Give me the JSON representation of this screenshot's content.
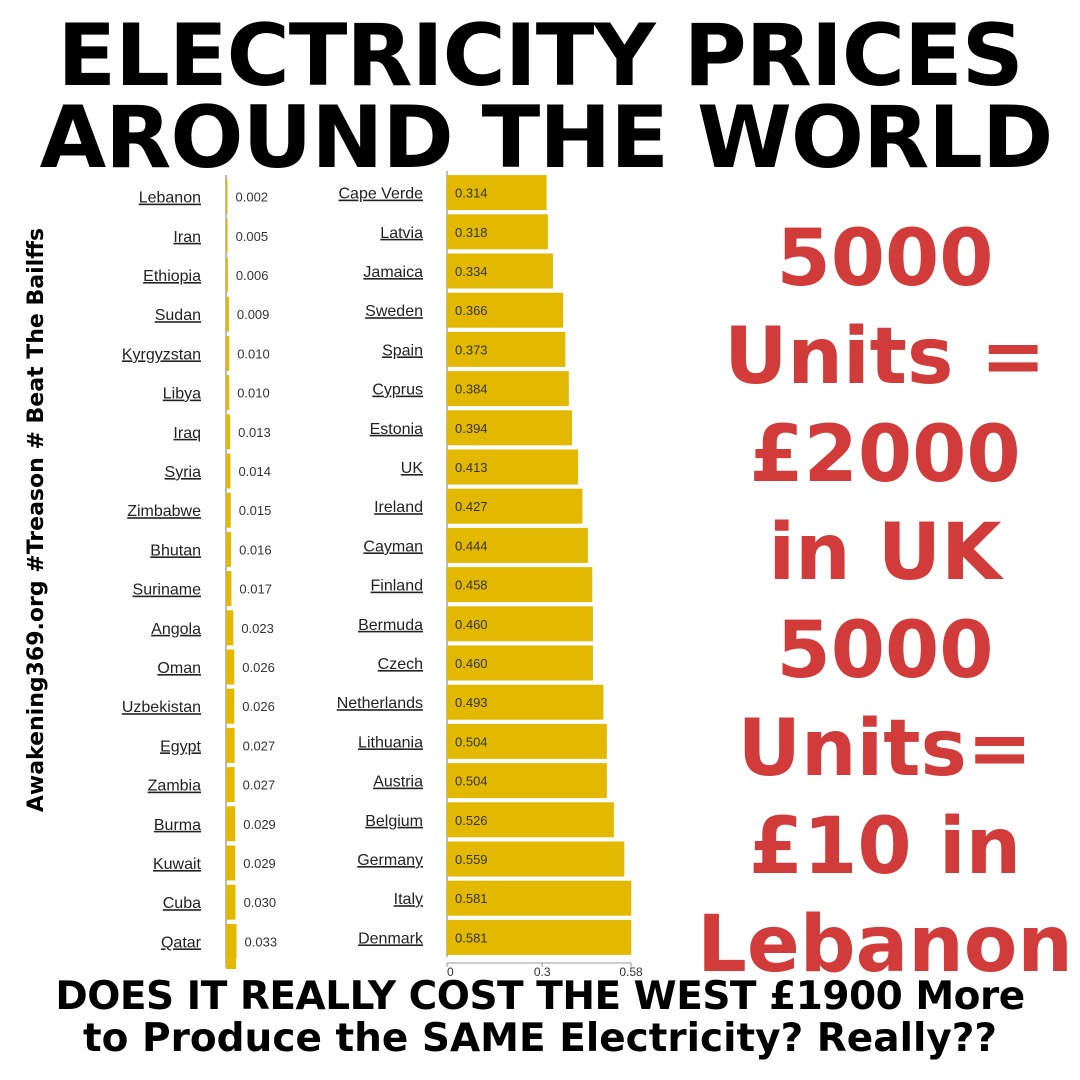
{
  "title": {
    "line1": "ELECTRICITY PRICES",
    "line2": "AROUND THE WORLD"
  },
  "side_credit": "Awakening369.org  #Treason # Beat The Bailffs",
  "callout": {
    "lines": [
      "5000",
      "Units =",
      "£2000",
      "in UK",
      "5000",
      "Units=",
      "£10 in",
      "Lebanon"
    ],
    "color": "#d13c3a"
  },
  "bottom_text": {
    "line1": "DOES IT REALLY COST THE WEST  £1900 More",
    "line2": "to Produce the SAME Electricity? Really??"
  },
  "chart_data": [
    {
      "type": "bar",
      "orientation": "horizontal",
      "bar_color": "#e3b900",
      "categories": [
        "Lebanon",
        "Iran",
        "Ethiopia",
        "Sudan",
        "Kyrgyzstan",
        "Libya",
        "Iraq",
        "Syria",
        "Zimbabwe",
        "Bhutan",
        "Suriname",
        "Angola",
        "Oman",
        "Uzbekistan",
        "Egypt",
        "Zambia",
        "Burma",
        "Kuwait",
        "Cuba",
        "Qatar"
      ],
      "values": [
        0.002,
        0.005,
        0.006,
        0.009,
        0.01,
        0.01,
        0.013,
        0.014,
        0.015,
        0.016,
        0.017,
        0.023,
        0.026,
        0.026,
        0.027,
        0.027,
        0.029,
        0.029,
        0.03,
        0.033
      ],
      "value_labels": [
        "0.002",
        "0.005",
        "0.006",
        "0.009",
        "0.010",
        "0.010",
        "0.013",
        "0.014",
        "0.015",
        "0.016",
        "0.017",
        "0.023",
        "0.026",
        "0.026",
        "0.027",
        "0.027",
        "0.029",
        "0.029",
        "0.030",
        "0.033"
      ],
      "xlim": [
        0,
        0.58
      ]
    },
    {
      "type": "bar",
      "orientation": "horizontal",
      "bar_color": "#e3b900",
      "categories": [
        "Cape Verde",
        "Latvia",
        "Jamaica",
        "Sweden",
        "Spain",
        "Cyprus",
        "Estonia",
        "UK",
        "Ireland",
        "Cayman",
        "Finland",
        "Bermuda",
        "Czech",
        "Netherlands",
        "Lithuania",
        "Austria",
        "Belgium",
        "Germany",
        "Italy",
        "Denmark"
      ],
      "values": [
        0.314,
        0.318,
        0.334,
        0.366,
        0.373,
        0.384,
        0.394,
        0.413,
        0.427,
        0.444,
        0.458,
        0.46,
        0.46,
        0.493,
        0.504,
        0.504,
        0.526,
        0.559,
        0.581,
        0.581
      ],
      "value_labels": [
        "0.314",
        "0.318",
        "0.334",
        "0.366",
        "0.373",
        "0.384",
        "0.394",
        "0.413",
        "0.427",
        "0.444",
        "0.458",
        "0.460",
        "0.460",
        "0.493",
        "0.504",
        "0.504",
        "0.526",
        "0.559",
        "0.581",
        "0.581"
      ],
      "xlim": [
        0,
        0.58
      ],
      "xticks": [
        "0",
        "0.3",
        "0.58"
      ]
    }
  ]
}
